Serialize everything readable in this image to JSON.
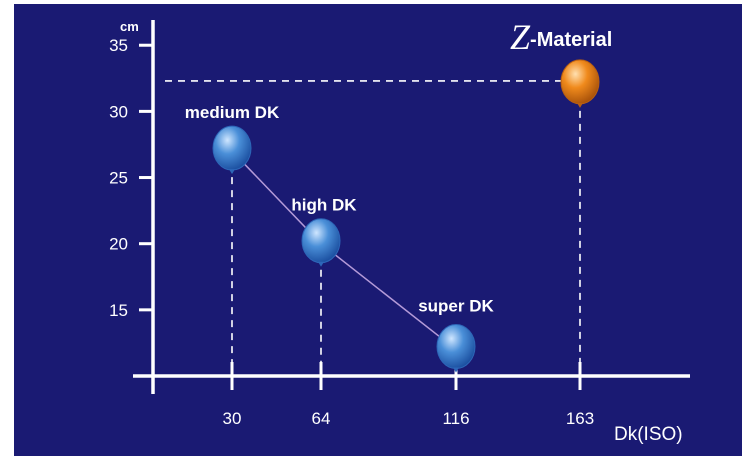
{
  "chart_data": {
    "type": "scatter",
    "y_unit": "cm",
    "xlabel": "Dk(ISO)",
    "x_ticks": [
      30,
      64,
      116,
      163
    ],
    "y_ticks": [
      15,
      20,
      25,
      30,
      35
    ],
    "ylim": [
      10,
      36
    ],
    "grid": false,
    "colors": {
      "background": "#1a1a73",
      "axis": "#ffffff",
      "dk_point": "#4a8fd8",
      "z_point": "#f08a1c",
      "connector": "#b49ad8"
    },
    "points": [
      {
        "x": 30,
        "y": 27,
        "label": "medium DK",
        "series": "dk"
      },
      {
        "x": 64,
        "y": 20,
        "label": "high DK",
        "series": "dk"
      },
      {
        "x": 116,
        "y": 12,
        "label": "super DK",
        "series": "dk"
      },
      {
        "x": 163,
        "y": 32,
        "label_prefix": "Z",
        "label": "-Material",
        "series": "z"
      }
    ]
  }
}
